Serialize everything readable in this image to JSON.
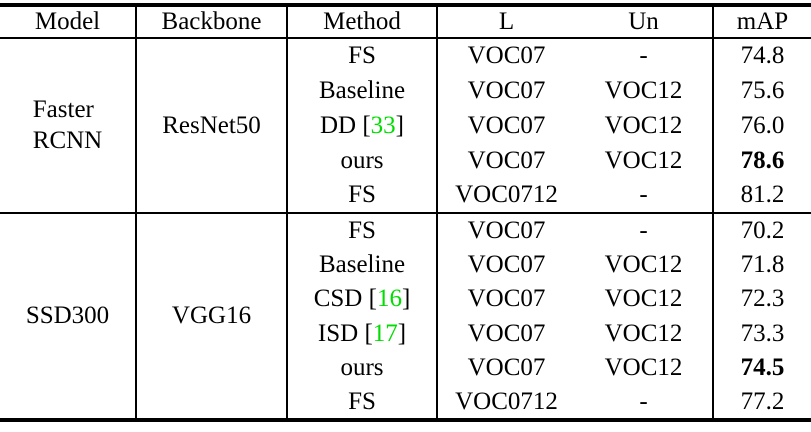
{
  "table": {
    "headers": [
      "Model",
      "Backbone",
      "Method",
      "L",
      "Un",
      "mAP"
    ],
    "citation_brackets": [
      "[",
      "]"
    ],
    "colors": {
      "background": "#ffffff",
      "text": "#000000",
      "border": "#000000",
      "citation_green": "#00dd00"
    },
    "sections": [
      {
        "model_lines": [
          "Faster",
          "RCNN"
        ],
        "backbone": "ResNet50",
        "rows": [
          {
            "method": "FS",
            "cite": null,
            "l": "VOC07",
            "un": "-",
            "map": "74.8",
            "bold": false
          },
          {
            "method": "Baseline",
            "cite": null,
            "l": "VOC07",
            "un": "VOC12",
            "map": "75.6",
            "bold": false
          },
          {
            "method": "DD",
            "cite": "33",
            "l": "VOC07",
            "un": "VOC12",
            "map": "76.0",
            "bold": false
          },
          {
            "method": "ours",
            "cite": null,
            "l": "VOC07",
            "un": "VOC12",
            "map": "78.6",
            "bold": true
          },
          {
            "method": "FS",
            "cite": null,
            "l": "VOC0712",
            "un": "-",
            "map": "81.2",
            "bold": false
          }
        ]
      },
      {
        "model_lines": [
          "SSD300"
        ],
        "backbone": "VGG16",
        "rows": [
          {
            "method": "FS",
            "cite": null,
            "l": "VOC07",
            "un": "-",
            "map": "70.2",
            "bold": false
          },
          {
            "method": "Baseline",
            "cite": null,
            "l": "VOC07",
            "un": "VOC12",
            "map": "71.8",
            "bold": false
          },
          {
            "method": "CSD",
            "cite": "16",
            "l": "VOC07",
            "un": "VOC12",
            "map": "72.3",
            "bold": false
          },
          {
            "method": "ISD",
            "cite": "17",
            "l": "VOC07",
            "un": "VOC12",
            "map": "73.3",
            "bold": false
          },
          {
            "method": "ours",
            "cite": null,
            "l": "VOC07",
            "un": "VOC12",
            "map": "74.5",
            "bold": true
          },
          {
            "method": "FS",
            "cite": null,
            "l": "VOC0712",
            "un": "-",
            "map": "77.2",
            "bold": false
          }
        ]
      }
    ]
  }
}
